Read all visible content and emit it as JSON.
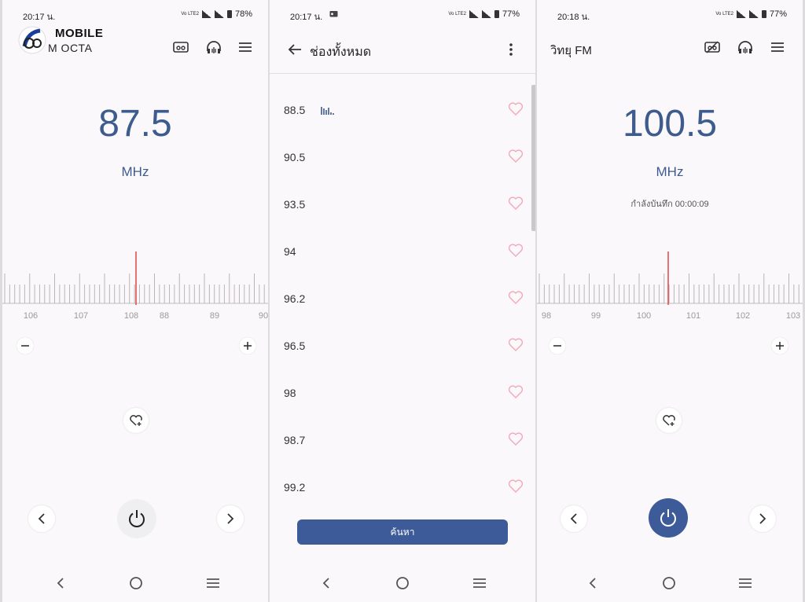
{
  "colors": {
    "accent": "#3d5b99",
    "freq_text": "#3d5b8c",
    "needle": "#e04646",
    "heart": "#f2a9b8"
  },
  "panel1": {
    "status": {
      "time": "20:17 น.",
      "battery": "78%",
      "net": "Vo LTE2"
    },
    "logo": {
      "line1": "MOBILE",
      "line2": "M OCTA"
    },
    "frequency": "87.5",
    "unit": "MHz",
    "dial_labels": [
      "106",
      "107",
      "108",
      "88",
      "89",
      "90"
    ],
    "icons": [
      "radio-icon",
      "headphones-icon",
      "menu-icon"
    ]
  },
  "panel2": {
    "status": {
      "time": "20:17 น.",
      "battery": "77%",
      "net": "Vo LTE2"
    },
    "title": "ช่องทั้งหมด",
    "stations": [
      "88.5",
      "90.5",
      "93.5",
      "94",
      "96.2",
      "96.5",
      "98",
      "98.7",
      "99.2"
    ],
    "search_label": "ค้นหา"
  },
  "panel3": {
    "status": {
      "time": "20:18 น.",
      "battery": "77%",
      "net": "Vo LTE2"
    },
    "title": "วิทยุ FM",
    "frequency": "100.5",
    "unit": "MHz",
    "recording": "กำลังบันทึก 00:00:09",
    "dial_labels": [
      "98",
      "99",
      "100",
      "101",
      "102",
      "103"
    ]
  }
}
